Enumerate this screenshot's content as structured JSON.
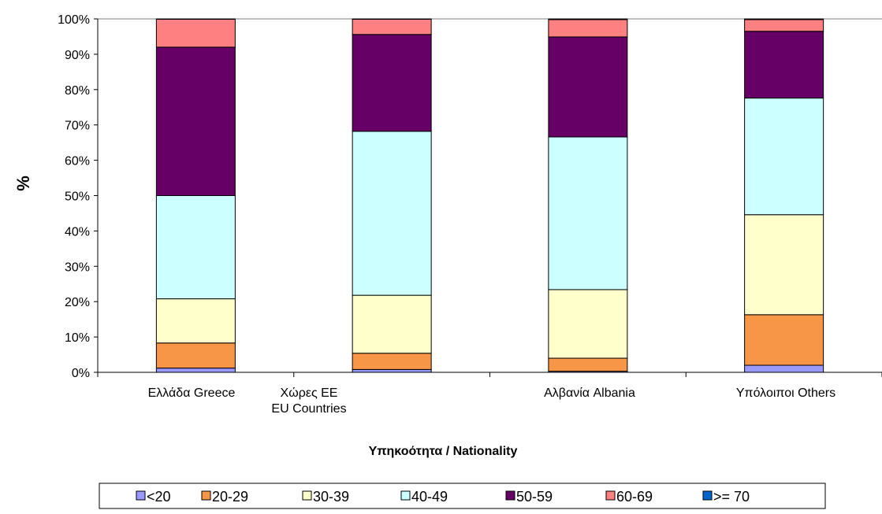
{
  "chart_data": {
    "type": "bar",
    "stacked": true,
    "normalized": true,
    "title": "",
    "ylabel": "%",
    "xlabel": "Υπηκοότητα / Nationality",
    "ylim": [
      0,
      100
    ],
    "yticks": [
      "0%",
      "10%",
      "20%",
      "30%",
      "40%",
      "50%",
      "60%",
      "70%",
      "80%",
      "90%",
      "100%"
    ],
    "categories": [
      {
        "lines": [
          "Ελλάδα Greece"
        ]
      },
      {
        "lines": [
          "Χώρες ΕΕ",
          "EU Countries"
        ]
      },
      {
        "lines": [
          "Αλβανία Albania"
        ]
      },
      {
        "lines": [
          "Υπόλοιποι Others"
        ]
      }
    ],
    "grid": false,
    "legend_position": "bottom",
    "series": [
      {
        "name": "<20",
        "color": "#9999ff",
        "values": [
          1.2,
          0.8,
          0.3,
          2.0
        ]
      },
      {
        "name": "20-29",
        "color": "#f79646",
        "values": [
          7.1,
          4.6,
          3.7,
          14.3
        ]
      },
      {
        "name": "30-39",
        "color": "#ffffcc",
        "values": [
          12.5,
          16.4,
          19.4,
          28.3
        ]
      },
      {
        "name": "40-49",
        "color": "#ccffff",
        "values": [
          29.2,
          46.4,
          43.2,
          33.0
        ]
      },
      {
        "name": "50-59",
        "color": "#660066",
        "values": [
          42.0,
          27.4,
          28.3,
          18.9
        ]
      },
      {
        "name": "60-69",
        "color": "#ff8080",
        "values": [
          7.9,
          4.3,
          4.9,
          3.3
        ]
      },
      {
        "name": ">= 70",
        "color": "#0066cc",
        "values": [
          0.1,
          0.1,
          0.2,
          0.2
        ]
      }
    ]
  }
}
